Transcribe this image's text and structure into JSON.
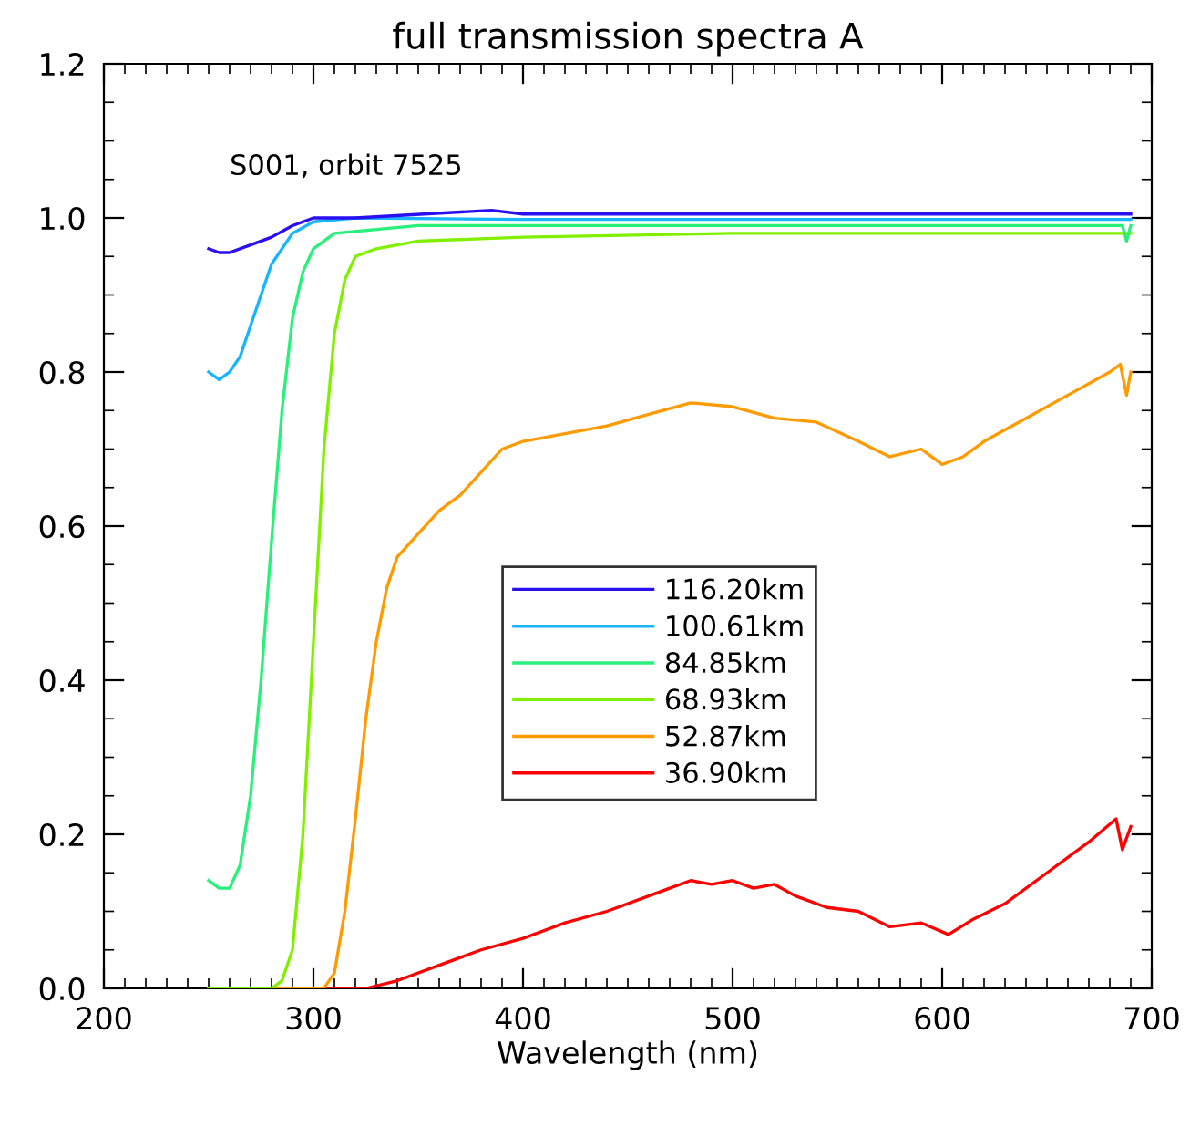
{
  "chart_data": {
    "type": "line",
    "title": "full transmission spectra A",
    "xlabel": "Wavelength (nm)",
    "annotations": [
      "S001, orbit 7525"
    ],
    "xlim": [
      200,
      700
    ],
    "xticks": [
      200,
      300,
      400,
      500,
      600,
      700
    ],
    "ylim": [
      0,
      1.2
    ],
    "yticks": [
      {
        "value": 0,
        "label": "0.0"
      },
      0.2,
      0.4,
      0.6,
      0.8,
      {
        "value": 1,
        "label": "1.0"
      },
      1.2
    ],
    "grid": false,
    "legend": "center",
    "marker": "none",
    "line_style": "solid",
    "series": [
      {
        "name": "116.20km",
        "color": "#2a10f0",
        "x": [
          250,
          255,
          260,
          270,
          280,
          290,
          300,
          320,
          385,
          400,
          500,
          600,
          690
        ],
        "values": [
          0.96,
          0.955,
          0.955,
          0.965,
          0.975,
          0.99,
          1.0,
          1.0,
          1.01,
          1.005,
          1.005,
          1.005,
          1.005
        ]
      },
      {
        "name": "100.61km",
        "color": "#19b4ff",
        "x": [
          250,
          255,
          260,
          265,
          270,
          275,
          280,
          290,
          300,
          320,
          400,
          500,
          600,
          690
        ],
        "values": [
          0.8,
          0.79,
          0.8,
          0.82,
          0.86,
          0.9,
          0.94,
          0.98,
          0.995,
          1.0,
          0.998,
          0.998,
          0.998,
          0.998
        ]
      },
      {
        "name": "84.85km",
        "color": "#29f07a",
        "x": [
          250,
          255,
          260,
          265,
          270,
          275,
          280,
          285,
          290,
          295,
          300,
          310,
          350,
          400,
          500,
          600,
          686,
          688,
          690
        ],
        "values": [
          0.14,
          0.13,
          0.13,
          0.16,
          0.25,
          0.4,
          0.58,
          0.75,
          0.87,
          0.93,
          0.96,
          0.98,
          0.99,
          0.99,
          0.99,
          0.99,
          0.99,
          0.97,
          0.99
        ]
      },
      {
        "name": "68.93km",
        "color": "#80f000",
        "x": [
          250,
          280,
          285,
          290,
          295,
          300,
          305,
          310,
          315,
          320,
          330,
          350,
          400,
          500,
          600,
          690
        ],
        "values": [
          0.0,
          0.0,
          0.01,
          0.05,
          0.2,
          0.45,
          0.7,
          0.85,
          0.92,
          0.95,
          0.96,
          0.97,
          0.975,
          0.98,
          0.98,
          0.98
        ]
      },
      {
        "name": "52.87km",
        "color": "#ff9a00",
        "x": [
          250,
          305,
          310,
          315,
          320,
          325,
          330,
          335,
          340,
          350,
          360,
          370,
          380,
          390,
          400,
          420,
          440,
          460,
          480,
          500,
          520,
          540,
          560,
          575,
          590,
          600,
          610,
          620,
          640,
          660,
          680,
          685,
          688,
          690
        ],
        "values": [
          0.0,
          0.0,
          0.02,
          0.1,
          0.22,
          0.35,
          0.45,
          0.52,
          0.56,
          0.59,
          0.62,
          0.64,
          0.67,
          0.7,
          0.71,
          0.72,
          0.73,
          0.745,
          0.76,
          0.755,
          0.74,
          0.735,
          0.71,
          0.69,
          0.7,
          0.68,
          0.69,
          0.71,
          0.74,
          0.77,
          0.8,
          0.81,
          0.77,
          0.8
        ]
      },
      {
        "name": "36.90km",
        "color": "#ff0000",
        "x": [
          250,
          325,
          340,
          360,
          380,
          400,
          420,
          440,
          460,
          470,
          480,
          490,
          500,
          510,
          520,
          530,
          545,
          560,
          575,
          590,
          603,
          615,
          630,
          650,
          670,
          683,
          686,
          690
        ],
        "values": [
          0.0,
          0.0,
          0.01,
          0.03,
          0.05,
          0.065,
          0.085,
          0.1,
          0.12,
          0.13,
          0.14,
          0.135,
          0.14,
          0.13,
          0.135,
          0.12,
          0.105,
          0.1,
          0.08,
          0.085,
          0.07,
          0.09,
          0.11,
          0.15,
          0.19,
          0.22,
          0.18,
          0.21
        ]
      }
    ]
  }
}
